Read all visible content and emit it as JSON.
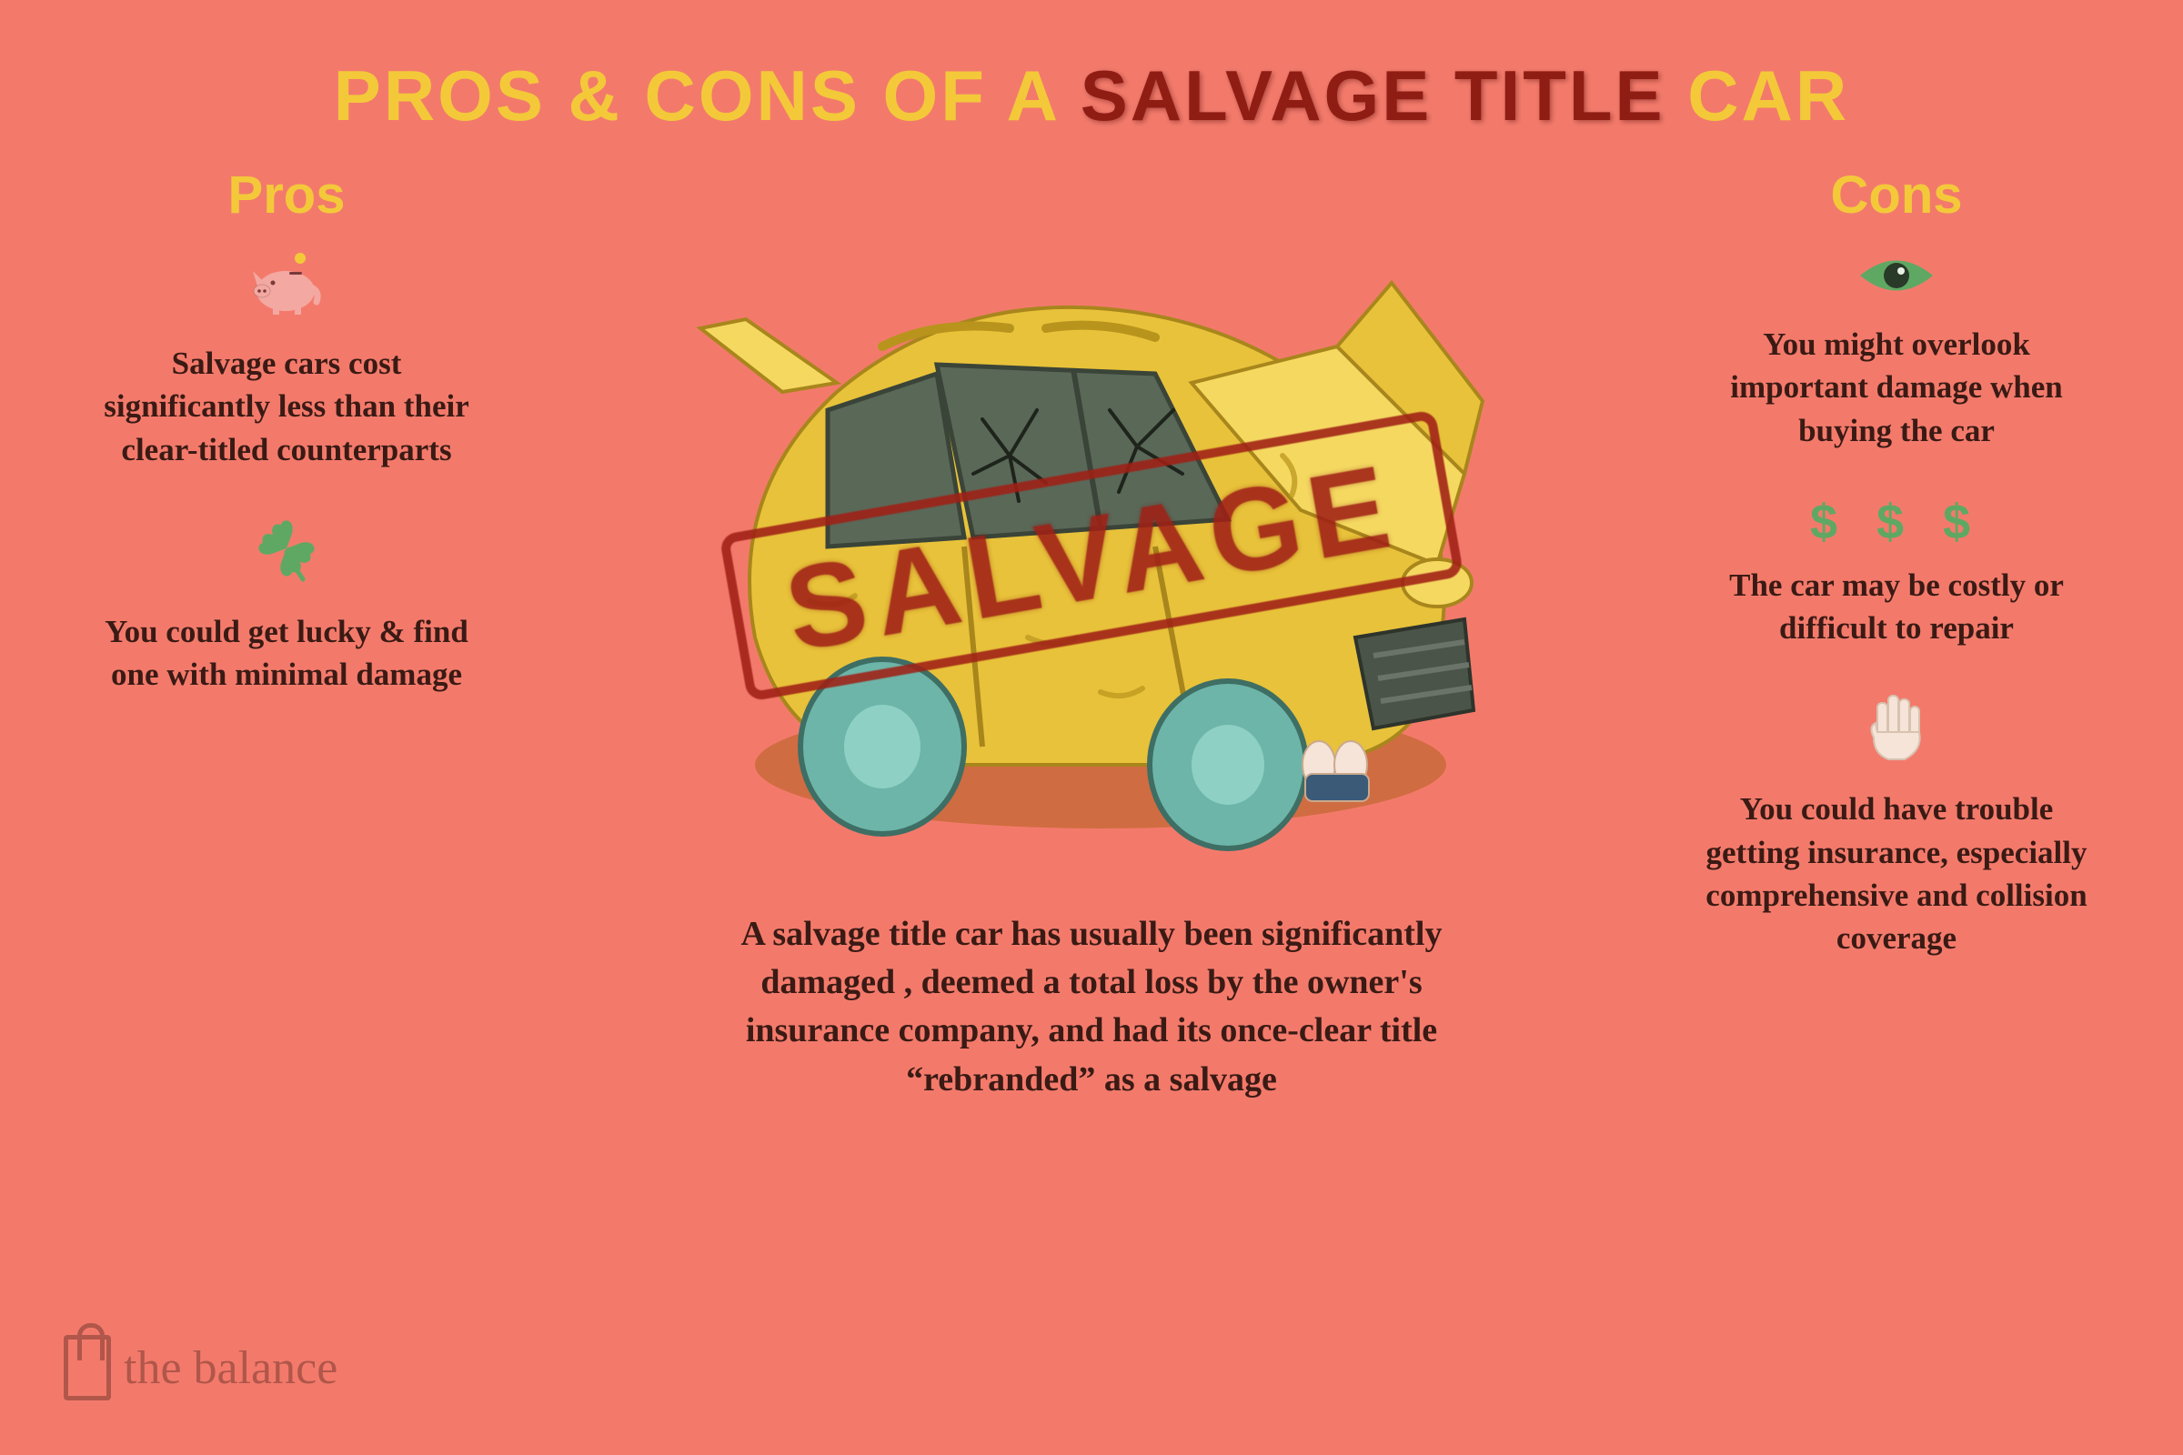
{
  "colors": {
    "background": "#f37a6b",
    "yellow": "#f3c93a",
    "dark_red": "#a02016",
    "text": "#3a1a14",
    "green": "#5fa863",
    "pink": "#f3a8a2",
    "teal": "#6db5a8",
    "car_yellow": "#e8c23a",
    "car_yellow_hi": "#f5d860",
    "car_shadow": "#c96a3a",
    "glass": "#5a6858",
    "hand": "#f6e4d8",
    "logo": "#7a3a30"
  },
  "title": {
    "part1": "PROS & CONS OF A ",
    "part2": "SALVAGE TITLE",
    "part3": " CAR",
    "fontsize": 78
  },
  "pros": {
    "heading": "Pros",
    "items": [
      {
        "icon": "piggy",
        "text": "Salvage cars cost significantly less than their clear-titled counterparts"
      },
      {
        "icon": "clover",
        "text": "You could get lucky & find one with minimal damage"
      }
    ]
  },
  "cons": {
    "heading": "Cons",
    "items": [
      {
        "icon": "eye",
        "text": "You might overlook important damage when buying the car"
      },
      {
        "icon": "dollars",
        "text": "The car may be costly or difficult to repair"
      },
      {
        "icon": "hand",
        "text": "You could have trouble getting insurance, especially comprehensive and collision coverage"
      }
    ]
  },
  "stamp": "SALVAGE",
  "definition": "A salvage title car has usually been significantly damaged , deemed a total loss by the owner's insurance company, and had its once-clear title “rebranded” as a salvage",
  "logo_text": "the balance"
}
